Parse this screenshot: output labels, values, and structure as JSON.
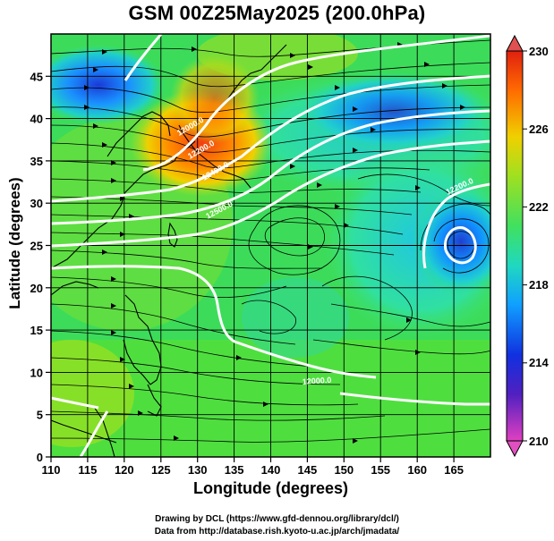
{
  "title": "GSM 00Z25May2025 (200.0hPa)",
  "x_axis": {
    "label": "Longitude (degrees)",
    "ticks": [
      "110",
      "115",
      "120",
      "125",
      "130",
      "135",
      "140",
      "145",
      "150",
      "155",
      "160",
      "165"
    ],
    "range": [
      110,
      170
    ]
  },
  "y_axis": {
    "label": "Latitude (degrees)",
    "ticks": [
      "0",
      "5",
      "10",
      "15",
      "20",
      "25",
      "30",
      "35",
      "40",
      "45"
    ],
    "range": [
      0,
      50
    ]
  },
  "colorbar": {
    "ticks": [
      "210",
      "214",
      "218",
      "222",
      "226",
      "230"
    ],
    "range": [
      210,
      230
    ],
    "colors": [
      "#e040c0",
      "#3020c0",
      "#1080ff",
      "#20d0d0",
      "#40e060",
      "#a0e020",
      "#f0d000",
      "#ff7000",
      "#e02010"
    ]
  },
  "contours": {
    "labels": [
      "12000.0",
      "12200.0",
      "12400.0",
      "12500.0"
    ]
  },
  "credits": {
    "line1": "Drawing by DCL (https://www.gfd-dennou.org/library/dcl/)",
    "line2": "Data from http://database.rish.kyoto-u.ac.jp/arch/jmadata/"
  }
}
